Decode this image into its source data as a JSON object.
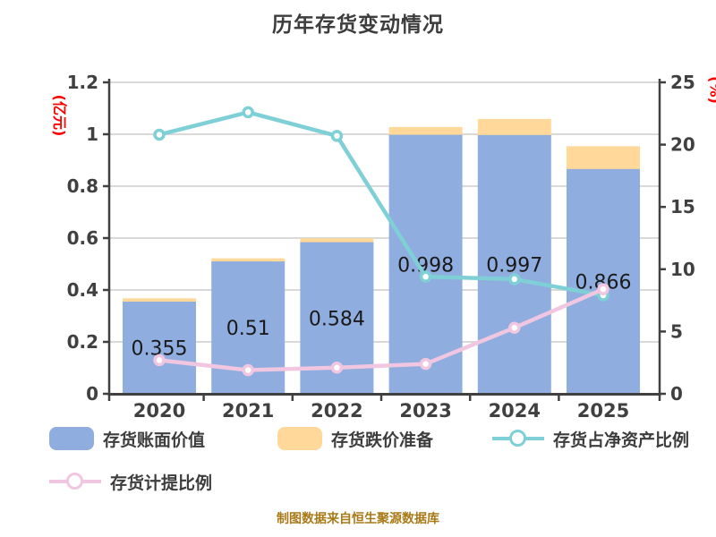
{
  "title": "历年存货变动情况",
  "footer": "制图数据来自恒生聚源数据库",
  "colors": {
    "book_value_bar": "#8fadde",
    "provision_bar": "#ffd89a",
    "net_asset_ratio_line": "#7ed0d6",
    "provision_ratio_line": "#f0c6e0",
    "gridline": "#d9d9d9",
    "axis": "#404040",
    "tick_text": "#404040",
    "value_label_text": "#1a1a1a",
    "axis_unit_text": "#ff0000",
    "footer_text": "#a87a18"
  },
  "left_axis": {
    "unit": "(亿元)",
    "min": 0,
    "max": 1.2,
    "ticks": [
      "0",
      "0.2",
      "0.4",
      "0.6",
      "0.8",
      "1",
      "1.2"
    ]
  },
  "right_axis": {
    "unit": "(%)",
    "min": 0,
    "max": 25,
    "ticks": [
      "0",
      "5",
      "10",
      "15",
      "20",
      "25"
    ]
  },
  "chart_data": {
    "type": "bar",
    "subtype": "stacked-bar-with-lines-dual-axis",
    "title": "历年存货变动情况",
    "categories": [
      "2020",
      "2021",
      "2022",
      "2023",
      "2024",
      "2025"
    ],
    "grid": true,
    "legend_position": "bottom",
    "ylim_left": [
      0,
      1.2
    ],
    "ylim_right": [
      0,
      25
    ],
    "series": [
      {
        "name": "存货账面价值",
        "type": "bar",
        "axis": "left",
        "color": "#8fadde",
        "values": [
          0.355,
          0.51,
          0.584,
          0.998,
          0.997,
          0.866
        ],
        "labels": [
          "0.355",
          "0.51",
          "0.584",
          "0.998",
          "0.997",
          "0.866"
        ]
      },
      {
        "name": "存货跌价准备",
        "type": "bar",
        "axis": "left",
        "stacked_on": "存货账面价值",
        "color": "#ffd89a",
        "values": [
          0.013,
          0.012,
          0.015,
          0.03,
          0.062,
          0.088
        ]
      },
      {
        "name": "存货占净资产比例",
        "type": "line",
        "axis": "right",
        "color": "#7ed0d6",
        "values": [
          20.8,
          22.6,
          20.7,
          9.4,
          9.2,
          7.9
        ]
      },
      {
        "name": "存货计提比例",
        "type": "line",
        "axis": "right",
        "color": "#f0c6e0",
        "values": [
          2.7,
          1.9,
          2.1,
          2.4,
          5.3,
          8.4
        ]
      }
    ]
  },
  "legend": {
    "items": [
      {
        "label": "存货账面价值",
        "type": "bar",
        "color": "#8fadde"
      },
      {
        "label": "存货跌价准备",
        "type": "bar",
        "color": "#ffd89a"
      },
      {
        "label": "存货占净资产比例",
        "type": "line",
        "color": "#7ed0d6"
      },
      {
        "label": "存货计提比例",
        "type": "line",
        "color": "#f0c6e0"
      }
    ]
  }
}
